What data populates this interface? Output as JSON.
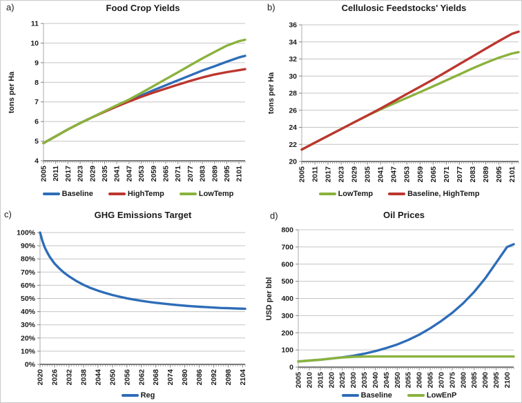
{
  "palette": {
    "blue": "#2E6DB8",
    "red": "#BC362F",
    "green": "#8AB23C",
    "gridline": "#C4C4C4",
    "y_axis": "#ABABAB",
    "x_axis": "#4D4D4D",
    "tick": "#808080",
    "text": "#1A1A1A",
    "border": "#C9C9C9"
  },
  "chart_data": [
    {
      "type": "line",
      "panel_label": "a)",
      "title": "Food Crop Yields",
      "xlabel": "",
      "ylabel": "tons per Ha",
      "xlim": [
        2005,
        2104
      ],
      "ylim": [
        4,
        11
      ],
      "grid": "horizontal",
      "legend_position": "bottom",
      "ytick_labels": [
        "4",
        "5",
        "6",
        "7",
        "8",
        "9",
        "10",
        "11"
      ],
      "xtick_labels": [
        "2005",
        "2011",
        "2017",
        "2023",
        "2029",
        "2035",
        "2041",
        "2047",
        "2053",
        "2059",
        "2065",
        "2071",
        "2077",
        "2083",
        "2089",
        "2095",
        "2101"
      ],
      "x": [
        2005,
        2011,
        2017,
        2023,
        2029,
        2035,
        2041,
        2047,
        2053,
        2059,
        2065,
        2071,
        2077,
        2083,
        2089,
        2095,
        2101,
        2104
      ],
      "series": [
        {
          "name": "Baseline",
          "color": "#2E6DB8",
          "values": [
            4.9,
            5.25,
            5.6,
            5.92,
            6.22,
            6.52,
            6.8,
            7.07,
            7.33,
            7.6,
            7.85,
            8.1,
            8.35,
            8.6,
            8.82,
            9.05,
            9.27,
            9.35
          ]
        },
        {
          "name": "HighTemp",
          "color": "#BC362F",
          "values": [
            4.9,
            5.25,
            5.6,
            5.92,
            6.22,
            6.5,
            6.77,
            7.02,
            7.26,
            7.48,
            7.68,
            7.88,
            8.07,
            8.25,
            8.4,
            8.52,
            8.62,
            8.67
          ]
        },
        {
          "name": "LowTemp",
          "color": "#8AB23C",
          "values": [
            4.9,
            5.25,
            5.6,
            5.92,
            6.22,
            6.53,
            6.83,
            7.12,
            7.46,
            7.81,
            8.16,
            8.51,
            8.87,
            9.22,
            9.55,
            9.87,
            10.1,
            10.17
          ]
        }
      ]
    },
    {
      "type": "line",
      "panel_label": "b)",
      "title": "Cellulosic Feedstocks' Yields",
      "xlabel": "",
      "ylabel": "tons per Ha",
      "xlim": [
        2005,
        2104
      ],
      "ylim": [
        20,
        36
      ],
      "grid": "horizontal",
      "legend_position": "bottom",
      "ytick_labels": [
        "20",
        "22",
        "24",
        "26",
        "28",
        "30",
        "32",
        "34",
        "36"
      ],
      "xtick_labels": [
        "2005",
        "2011",
        "2017",
        "2023",
        "2029",
        "2035",
        "2041",
        "2047",
        "2053",
        "2059",
        "2065",
        "2071",
        "2077",
        "2083",
        "2089",
        "2095",
        "2101"
      ],
      "x": [
        2005,
        2011,
        2017,
        2023,
        2029,
        2035,
        2041,
        2047,
        2053,
        2059,
        2065,
        2071,
        2077,
        2083,
        2089,
        2095,
        2101,
        2104
      ],
      "series": [
        {
          "name": "LowTemp",
          "color": "#8AB23C",
          "values": [
            21.4,
            22.2,
            23.0,
            23.8,
            24.6,
            25.37,
            26.1,
            26.78,
            27.45,
            28.12,
            28.8,
            29.5,
            30.2,
            30.9,
            31.55,
            32.15,
            32.65,
            32.8
          ]
        },
        {
          "name": "Baseline, HighTemp",
          "color": "#BC362F",
          "values": [
            21.4,
            22.2,
            23.0,
            23.8,
            24.6,
            25.4,
            26.2,
            27.05,
            27.9,
            28.75,
            29.6,
            30.5,
            31.4,
            32.3,
            33.2,
            34.1,
            34.95,
            35.2
          ]
        }
      ]
    },
    {
      "type": "line",
      "panel_label": "c)",
      "title": "GHG Emissions Target",
      "xlabel": "",
      "ylabel": "",
      "xlim": [
        2020,
        2105
      ],
      "ylim": [
        0,
        100
      ],
      "grid": "horizontal",
      "legend_position": "bottom",
      "ytick_labels": [
        "0%",
        "10%",
        "20%",
        "30%",
        "40%",
        "50%",
        "60%",
        "70%",
        "80%",
        "90%",
        "100%"
      ],
      "xtick_labels": [
        "2020",
        "2026",
        "2032",
        "2038",
        "2044",
        "2050",
        "2056",
        "2062",
        "2068",
        "2074",
        "2080",
        "2086",
        "2092",
        "2098",
        "2104"
      ],
      "x": [
        2020,
        2021,
        2022,
        2023,
        2024,
        2025,
        2026,
        2028,
        2030,
        2032,
        2035,
        2038,
        2041,
        2044,
        2047,
        2050,
        2053,
        2056,
        2059,
        2062,
        2065,
        2068,
        2071,
        2074,
        2077,
        2080,
        2083,
        2086,
        2089,
        2092,
        2095,
        2098,
        2101,
        2105
      ],
      "series": [
        {
          "name": "Reg",
          "color": "#2E6DB8",
          "values": [
            100,
            93.5,
            88.5,
            84.8,
            81.6,
            79,
            76.5,
            72.7,
            69.5,
            66.8,
            63.3,
            60.3,
            57.9,
            55.9,
            54.2,
            52.6,
            51.3,
            50.1,
            49.1,
            48.2,
            47.4,
            46.7,
            46.1,
            45.5,
            45,
            44.5,
            44.1,
            43.7,
            43.4,
            43.1,
            42.8,
            42.6,
            42.4,
            42.2
          ]
        }
      ]
    },
    {
      "type": "line",
      "panel_label": "d)",
      "title": "Oil Prices",
      "xlabel": "",
      "ylabel": "USD per bbl",
      "xlim": [
        2005,
        2103
      ],
      "ylim": [
        0,
        800
      ],
      "grid": "horizontal",
      "legend_position": "bottom",
      "ytick_labels": [
        "0",
        "100",
        "200",
        "300",
        "400",
        "500",
        "600",
        "700",
        "800"
      ],
      "xtick_labels": [
        "2005",
        "2010",
        "2015",
        "2020",
        "2025",
        "2030",
        "2035",
        "2040",
        "2045",
        "2050",
        "2055",
        "2060",
        "2065",
        "2070",
        "2075",
        "2080",
        "2085",
        "2090",
        "2095",
        "2100"
      ],
      "x": [
        2005,
        2010,
        2015,
        2020,
        2025,
        2030,
        2035,
        2040,
        2045,
        2050,
        2055,
        2060,
        2065,
        2070,
        2075,
        2080,
        2085,
        2090,
        2095,
        2100,
        2103
      ],
      "series": [
        {
          "name": "Baseline",
          "color": "#2E6DB8",
          "values": [
            33,
            38,
            43,
            50,
            57,
            66,
            78,
            93,
            111,
            132,
            158,
            189,
            226,
            268,
            316,
            372,
            438,
            516,
            608,
            700,
            716
          ]
        },
        {
          "name": "LowEnP",
          "color": "#8AB23C",
          "values": [
            33,
            38,
            43,
            50,
            56,
            60,
            61.5,
            62,
            62,
            62,
            62,
            62,
            62,
            62,
            62,
            62,
            62,
            62,
            62,
            62,
            62
          ]
        }
      ]
    }
  ]
}
